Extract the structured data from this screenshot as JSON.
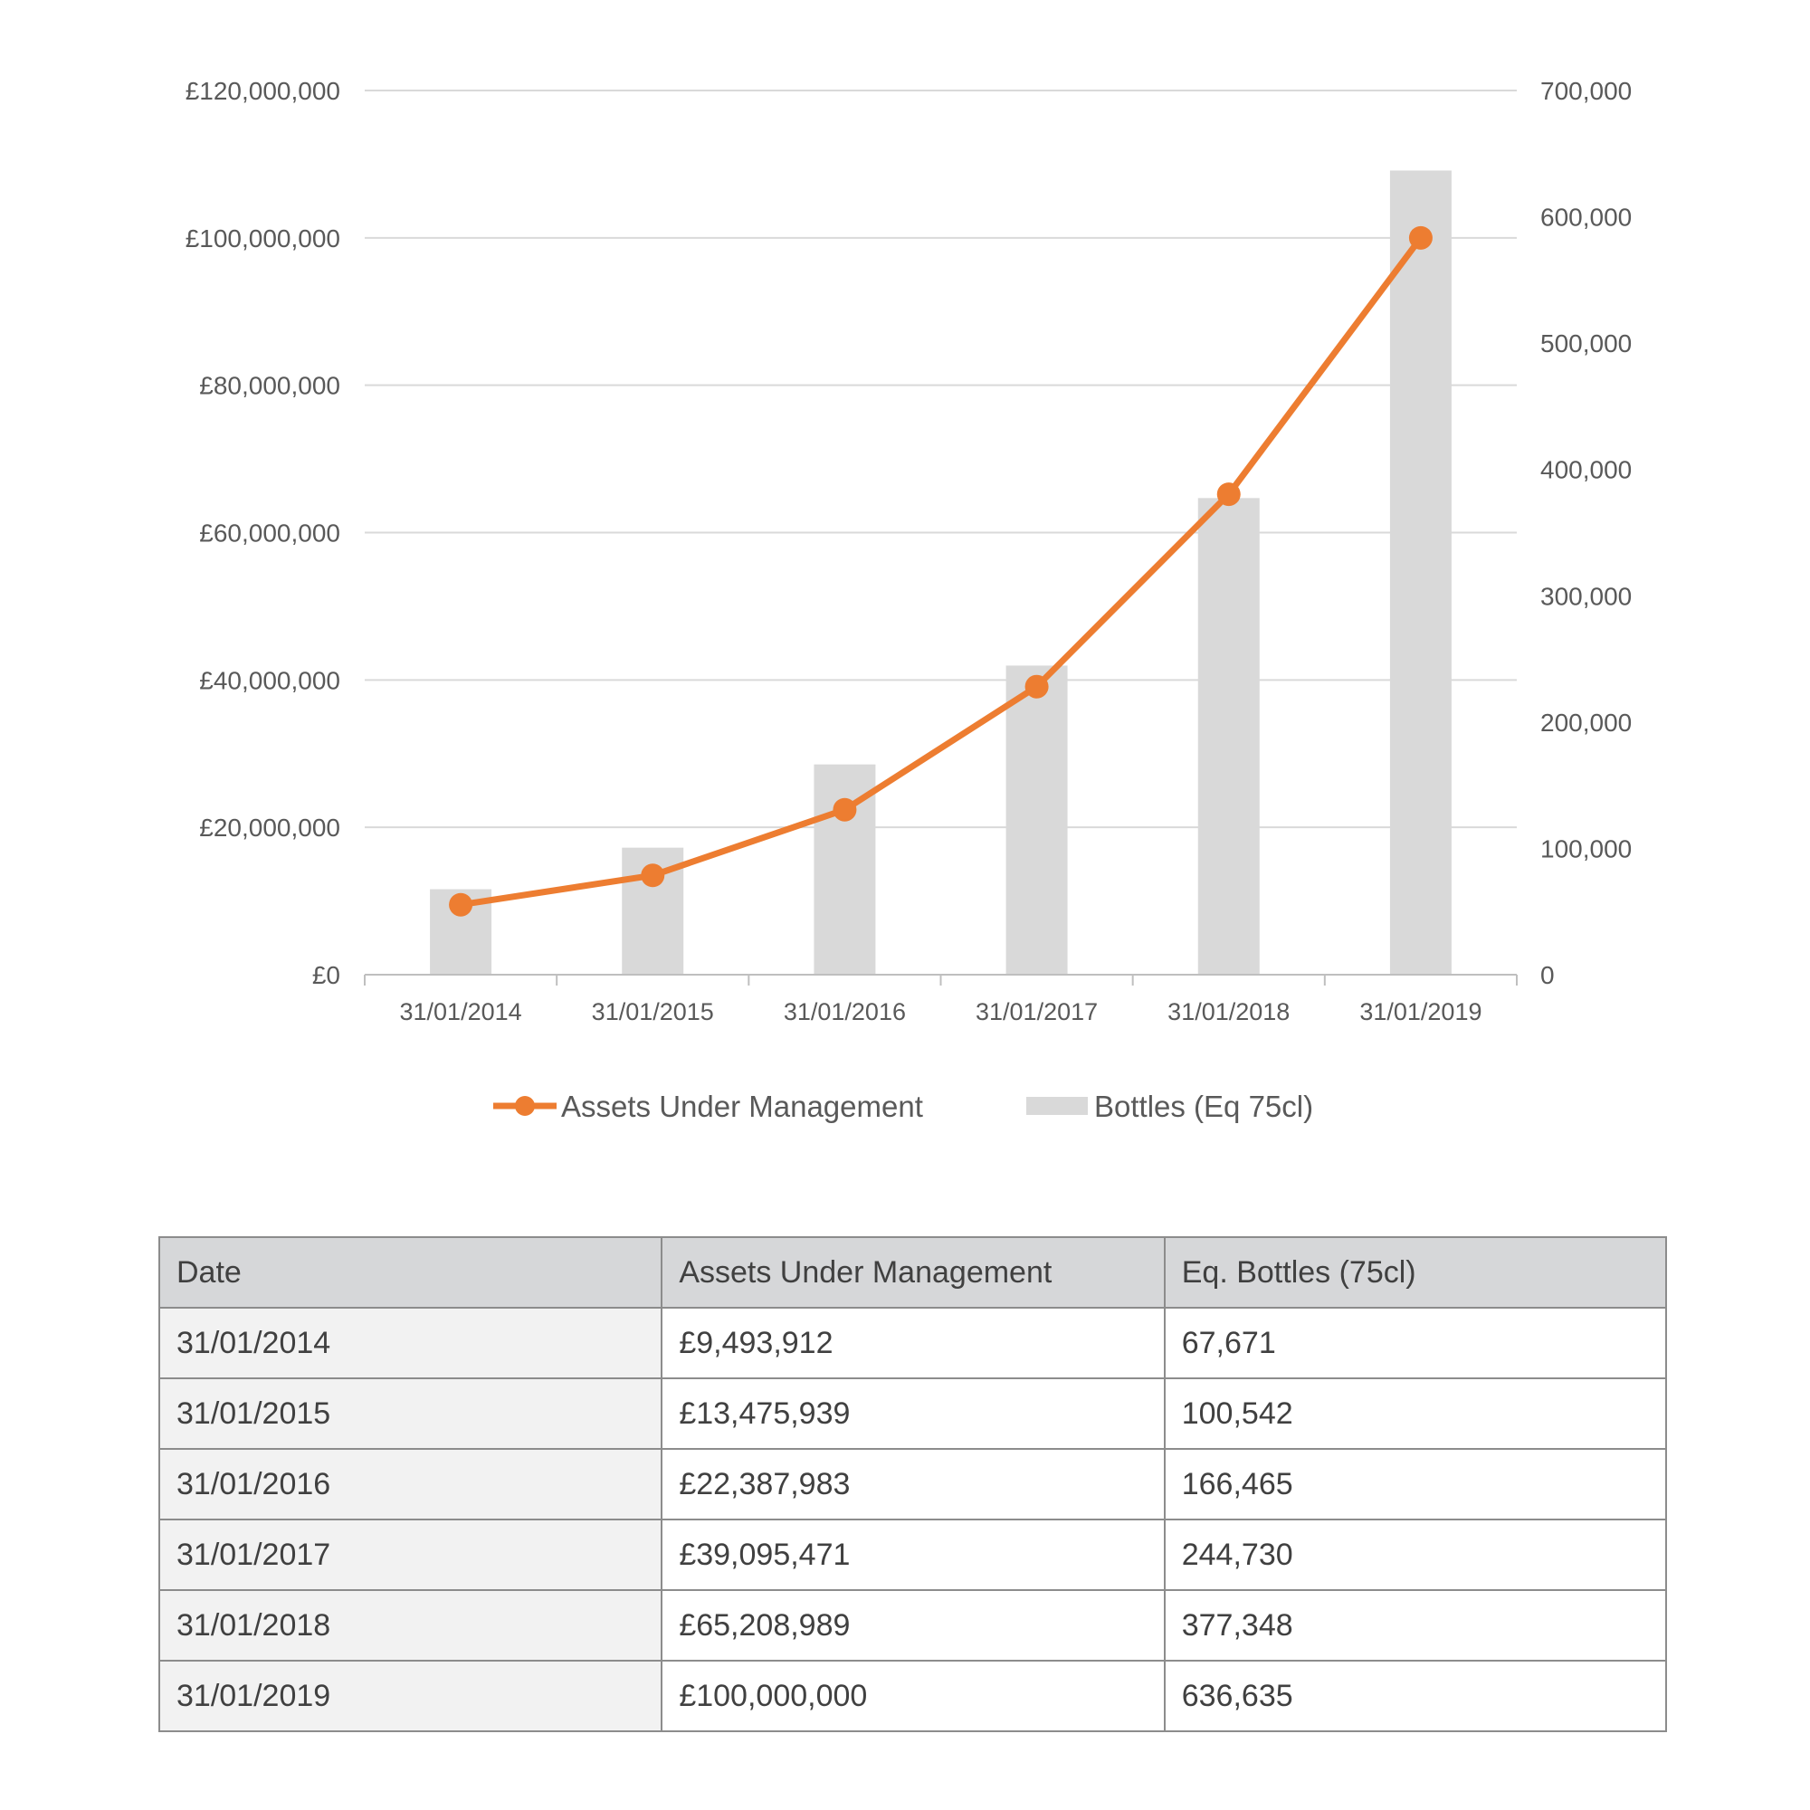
{
  "colors": {
    "line": "#ed7d31",
    "bar": "#d9d9d9",
    "grid": "#d9d9d9",
    "axis_text": "#595959"
  },
  "chart_data": {
    "type": "bar",
    "categories": [
      "31/01/2014",
      "31/01/2015",
      "31/01/2016",
      "31/01/2017",
      "31/01/2018",
      "31/01/2019"
    ],
    "series": [
      {
        "name": "Assets Under Management",
        "type": "line",
        "axis": "left",
        "color": "#ed7d31",
        "values": [
          9493912,
          13475939,
          22387983,
          39095471,
          65208989,
          100000000
        ]
      },
      {
        "name": "Bottles (Eq 75cl)",
        "type": "bar",
        "axis": "right",
        "color": "#d9d9d9",
        "values": [
          67671,
          100542,
          166465,
          244730,
          377348,
          636635
        ]
      }
    ],
    "ylim_left": [
      0,
      120000000
    ],
    "ylim_right": [
      0,
      700000
    ],
    "left_ticks": [
      "£0",
      "£20,000,000",
      "£40,000,000",
      "£60,000,000",
      "£80,000,000",
      "£100,000,000",
      "£120,000,000"
    ],
    "right_ticks": [
      "0",
      "100,000",
      "200,000",
      "300,000",
      "400,000",
      "500,000",
      "600,000",
      "700,000"
    ],
    "title": "",
    "xlabel": "",
    "ylabel": "",
    "grid": true,
    "legend_position": "bottom"
  },
  "table": {
    "headers": [
      "Date",
      "Assets Under Management",
      "Eq. Bottles (75cl)"
    ],
    "rows": [
      [
        "31/01/2014",
        "£9,493,912",
        "67,671"
      ],
      [
        "31/01/2015",
        "£13,475,939",
        "100,542"
      ],
      [
        "31/01/2016",
        "£22,387,983",
        "166,465"
      ],
      [
        "31/01/2017",
        "£39,095,471",
        "244,730"
      ],
      [
        "31/01/2018",
        "£65,208,989",
        "377,348"
      ],
      [
        "31/01/2019",
        "£100,000,000",
        "636,635"
      ]
    ]
  }
}
